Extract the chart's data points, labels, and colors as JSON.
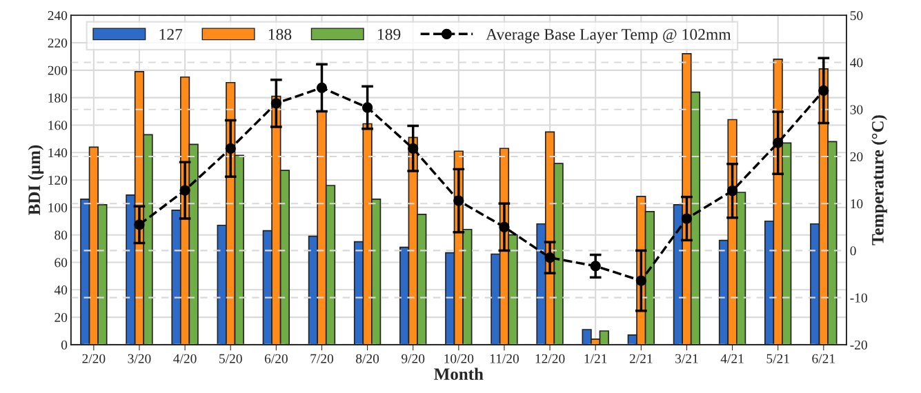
{
  "chart_data": {
    "type": "bar",
    "xlabel": "Month",
    "ylabel": "BDI (µm)",
    "y2label": "Temperature (°C)",
    "categories": [
      "2/20",
      "3/20",
      "4/20",
      "5/20",
      "6/20",
      "7/20",
      "8/20",
      "9/20",
      "10/20",
      "11/20",
      "12/20",
      "1/21",
      "2/21",
      "3/21",
      "4/21",
      "5/21",
      "6/21"
    ],
    "series": [
      {
        "name": "127",
        "color": "#2e6bc7",
        "values": [
          106,
          109,
          98,
          87,
          83,
          79,
          75,
          71,
          67,
          66,
          88,
          11,
          7,
          102,
          76,
          90,
          88
        ]
      },
      {
        "name": "188",
        "color": "#ff8c1a",
        "values": [
          144,
          199,
          195,
          191,
          181,
          170,
          161,
          151,
          141,
          143,
          155,
          4,
          108,
          212,
          164,
          208,
          201
        ]
      },
      {
        "name": "189",
        "color": "#70ad47",
        "values": [
          102,
          153,
          146,
          138,
          127,
          116,
          106,
          95,
          84,
          80,
          132,
          10,
          97,
          184,
          111,
          147,
          148
        ]
      },
      {
        "name": "Average Base Layer Temp @ 102mm",
        "type": "line",
        "axis": "y2",
        "color": "#000000",
        "marker": "circle",
        "line_style": "dashed",
        "values": [
          null,
          5.5,
          12.8,
          21.7,
          31.3,
          34.6,
          30.4,
          21.7,
          10.6,
          5,
          -1.5,
          -3.3,
          -6.4,
          6.8,
          12.7,
          22.9,
          34
        ],
        "errors": [
          null,
          3.9,
          6,
          6,
          5,
          5,
          4.5,
          4.8,
          6.7,
          5,
          3.3,
          2.4,
          6.4,
          4.6,
          5.7,
          6.6,
          6.9
        ]
      }
    ],
    "ylim": [
      0,
      240
    ],
    "yticks": [
      0,
      20,
      40,
      60,
      80,
      100,
      120,
      140,
      160,
      180,
      200,
      220,
      240
    ],
    "y2lim": [
      -20,
      50
    ],
    "y2ticks": [
      -20,
      -10,
      0,
      10,
      20,
      30,
      40,
      50
    ],
    "grid": true,
    "legend": "top"
  }
}
